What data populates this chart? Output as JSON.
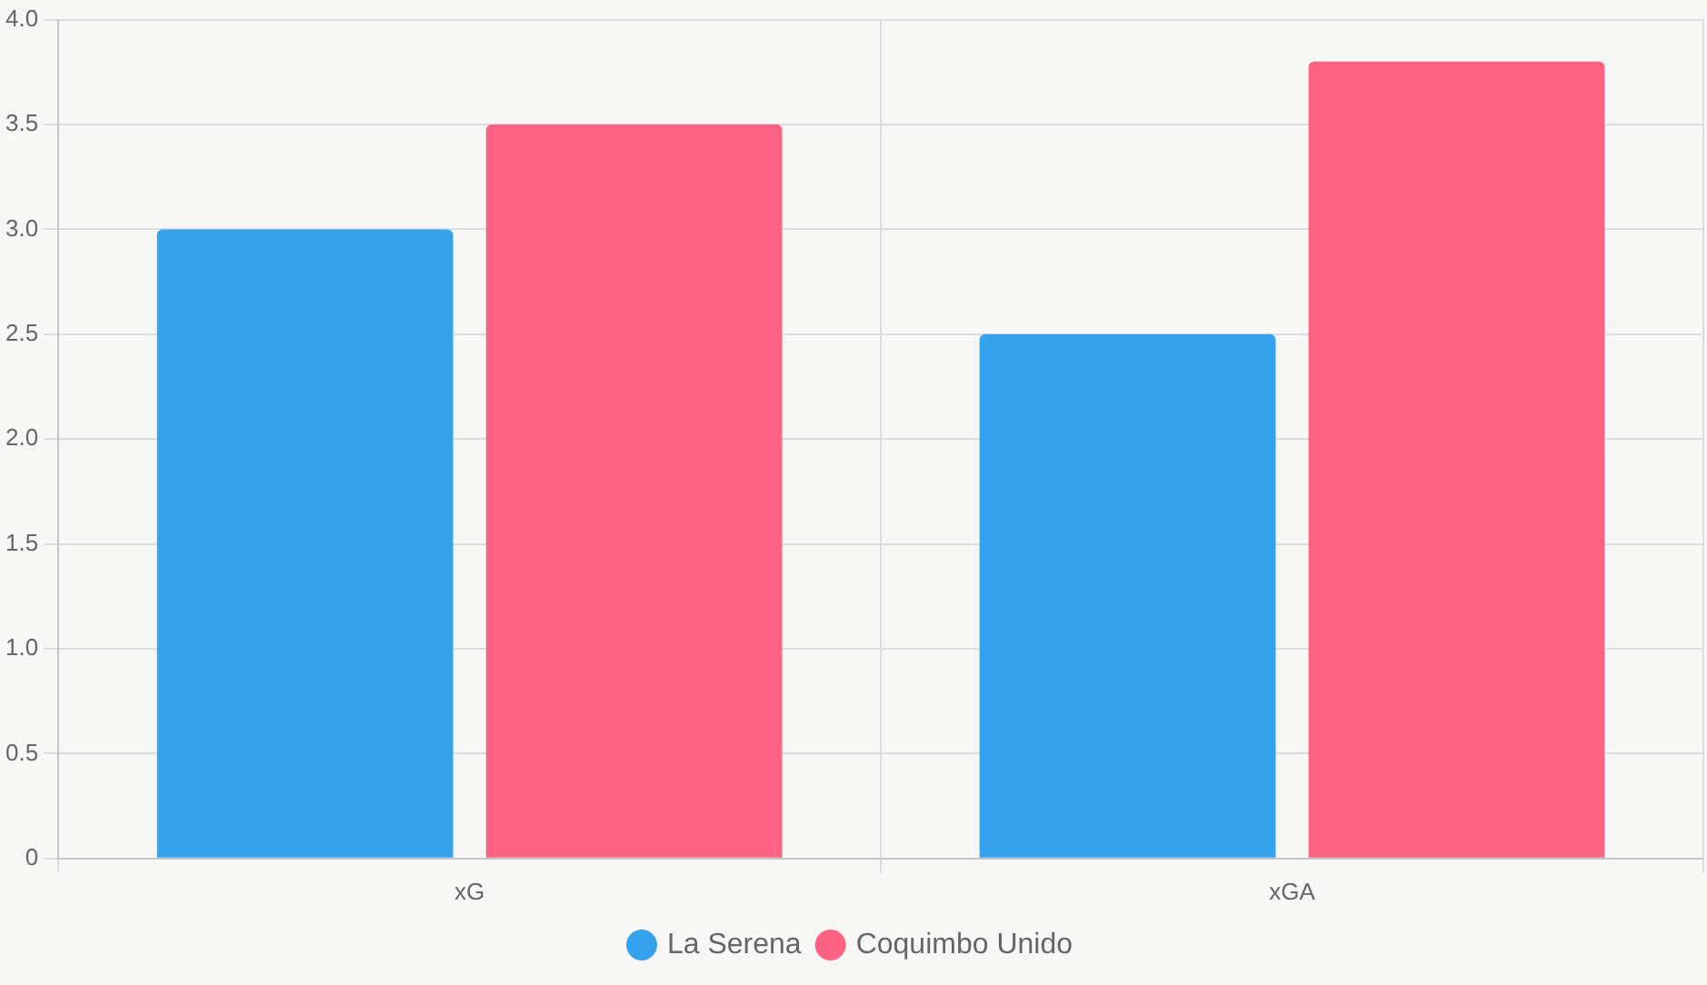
{
  "chart_data": {
    "type": "bar",
    "categories": [
      "xG",
      "xGA"
    ],
    "series": [
      {
        "name": "La Serena",
        "color": "#36a2eb",
        "values": [
          3.0,
          2.5
        ]
      },
      {
        "name": "Coquimbo Unido",
        "color": "#ff6384",
        "values": [
          3.5,
          3.8
        ]
      }
    ],
    "ylim": [
      0,
      4
    ],
    "yticks": [
      0,
      {
        "value": 0.5,
        "label": "0.5"
      },
      {
        "value": 1,
        "label": "1.0"
      },
      {
        "value": 1.5,
        "label": "1.5"
      },
      {
        "value": 2,
        "label": "2.0"
      },
      {
        "value": 2.5,
        "label": "2.5"
      },
      {
        "value": 3,
        "label": "3.0"
      },
      {
        "value": 3.5,
        "label": "3.5"
      },
      {
        "value": 4,
        "label": "4.0"
      }
    ],
    "grid": true,
    "legend": "bottom"
  }
}
